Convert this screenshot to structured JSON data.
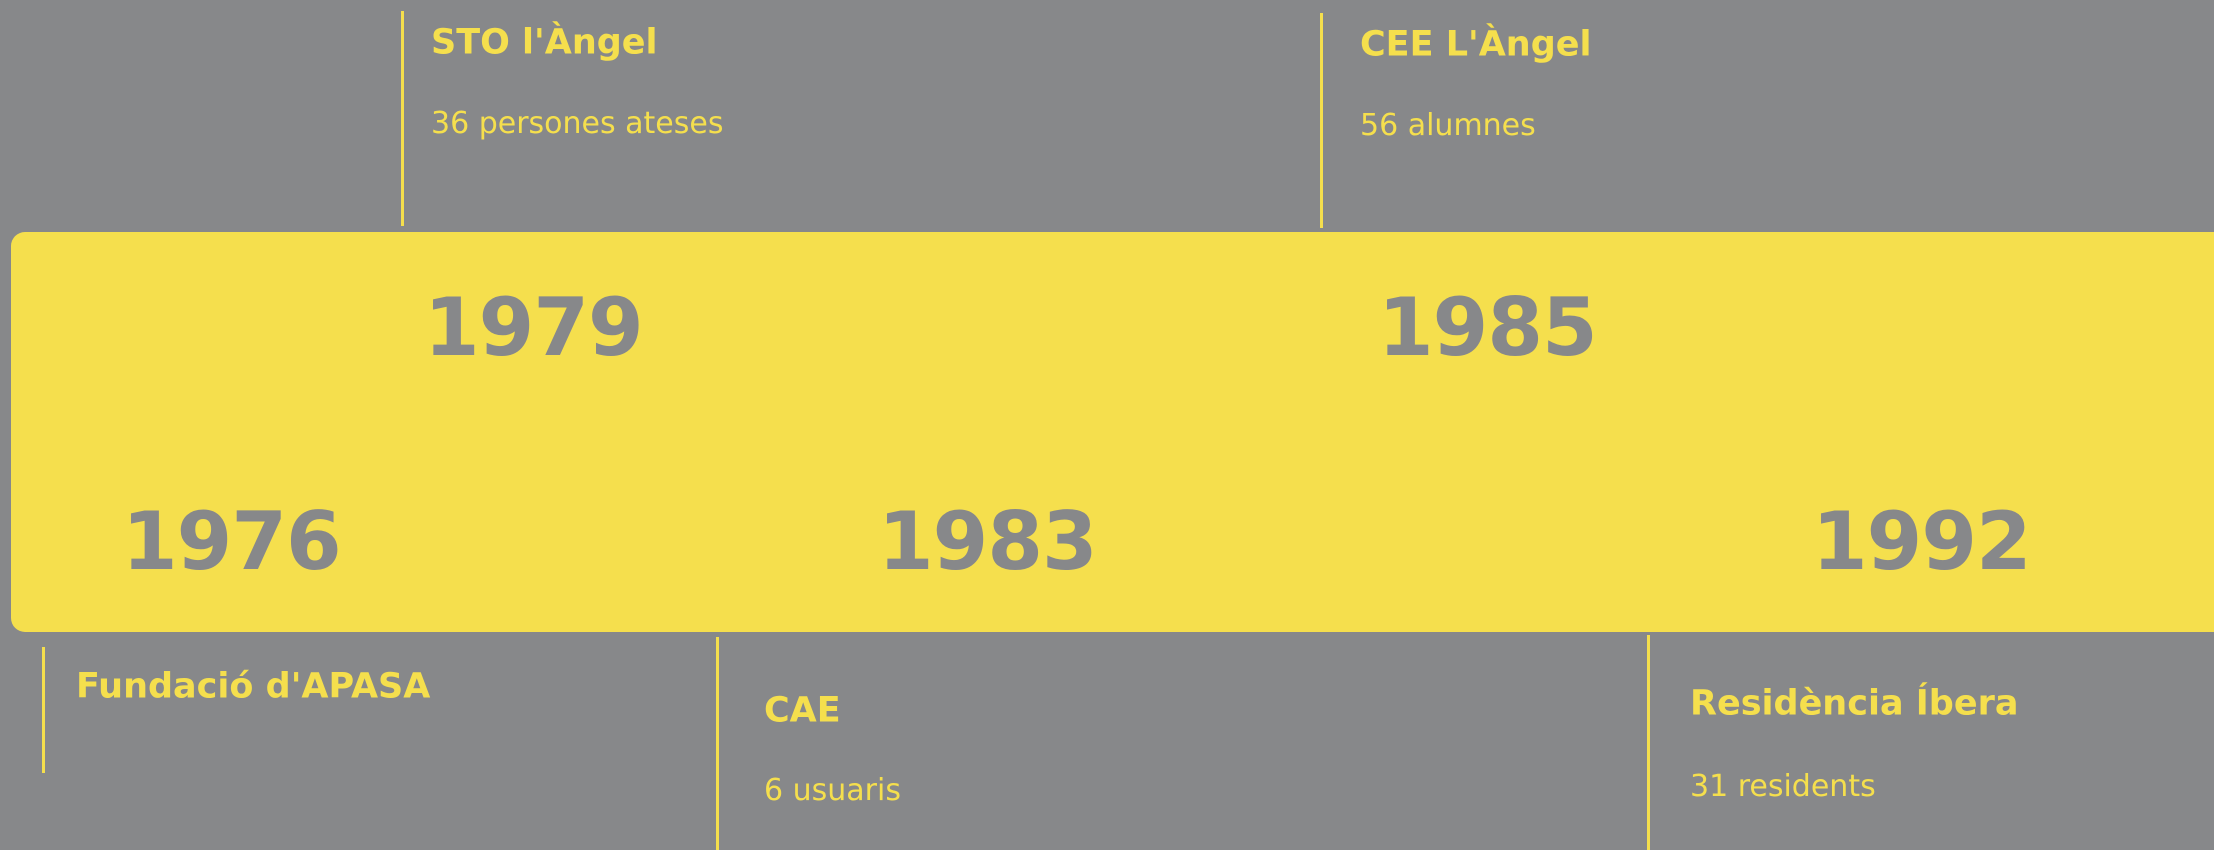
{
  "timeline": {
    "top": [
      {
        "year": "1979",
        "title": "STO l'Àngel",
        "subtitle": "36 persones ateses"
      },
      {
        "year": "1985",
        "title": "CEE L'Àngel",
        "subtitle": "56 alumnes"
      }
    ],
    "bottom": [
      {
        "year": "1976",
        "title": "Fundació d'APASA"
      },
      {
        "year": "1983",
        "title": "CAE",
        "subtitle": "6 usuaris"
      },
      {
        "year": "1992",
        "title": "Residència Íbera",
        "subtitle": "31 residents"
      }
    ]
  }
}
